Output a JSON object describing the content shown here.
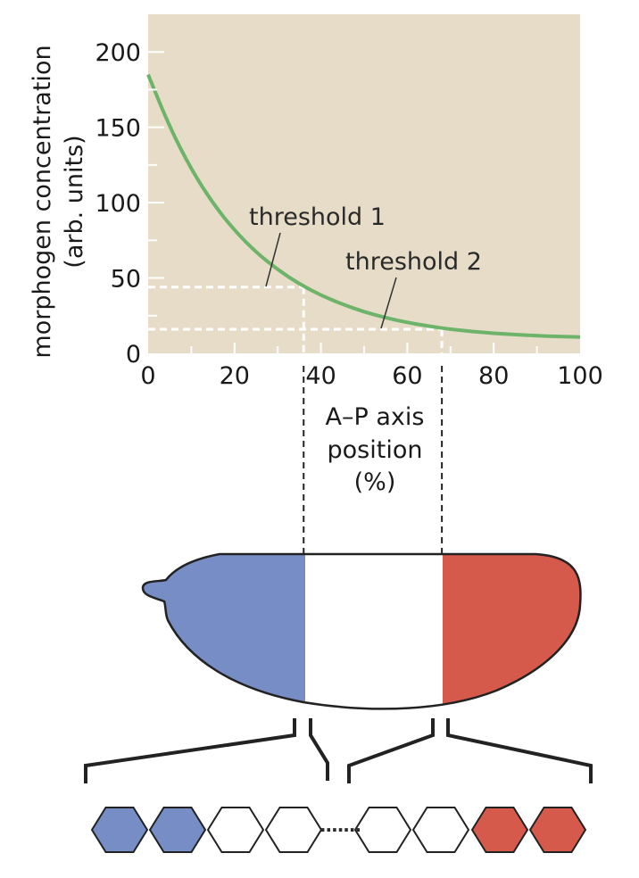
{
  "chart_data": {
    "type": "line",
    "xlabel_lines": [
      "A–P axis",
      "position",
      "(%)"
    ],
    "ylabel_lines": [
      "morphogen concentration",
      "(arb. units)"
    ],
    "xlim": [
      0,
      100
    ],
    "ylim": [
      0,
      225
    ],
    "x_ticks": [
      "0",
      "20",
      "40",
      "60",
      "80",
      "100"
    ],
    "y_ticks": [
      "0",
      "50",
      "100",
      "150",
      "200"
    ],
    "x_tick_values": [
      0,
      20,
      40,
      60,
      80,
      100
    ],
    "y_tick_values": [
      0,
      50,
      100,
      150,
      200
    ],
    "series": [
      {
        "color": "#6db36a",
        "x": [
          0,
          5,
          10,
          15,
          20,
          25,
          30,
          35,
          40,
          45,
          50,
          55,
          60,
          65,
          70,
          75,
          80,
          85,
          90,
          95,
          100
        ],
        "y": [
          185,
          150,
          122,
          99.5,
          81.5,
          67,
          55.5,
          46,
          38.5,
          32.5,
          27.5,
          23.6,
          20.5,
          18,
          16,
          14.5,
          13.3,
          12.4,
          11.7,
          11.2,
          10.8
        ]
      }
    ],
    "thresholds": [
      {
        "label": "threshold 1",
        "concentration": 44,
        "position": 36
      },
      {
        "label": "threshold 2",
        "concentration": 16,
        "position": 68
      }
    ],
    "grid": false,
    "background": "#e6dcc8"
  },
  "embryo": {
    "anterior_color": "#768dc6",
    "middle_color": "#ffffff",
    "posterior_color": "#d65a4b",
    "boundary_positions_percent": [
      36,
      68
    ]
  },
  "cells": {
    "colors_before_gap": [
      "#768dc6",
      "#768dc6",
      "#ffffff",
      "#ffffff"
    ],
    "gap_symbol": ".......",
    "colors_after_gap": [
      "#ffffff",
      "#ffffff",
      "#d65a4b",
      "#d65a4b"
    ]
  }
}
